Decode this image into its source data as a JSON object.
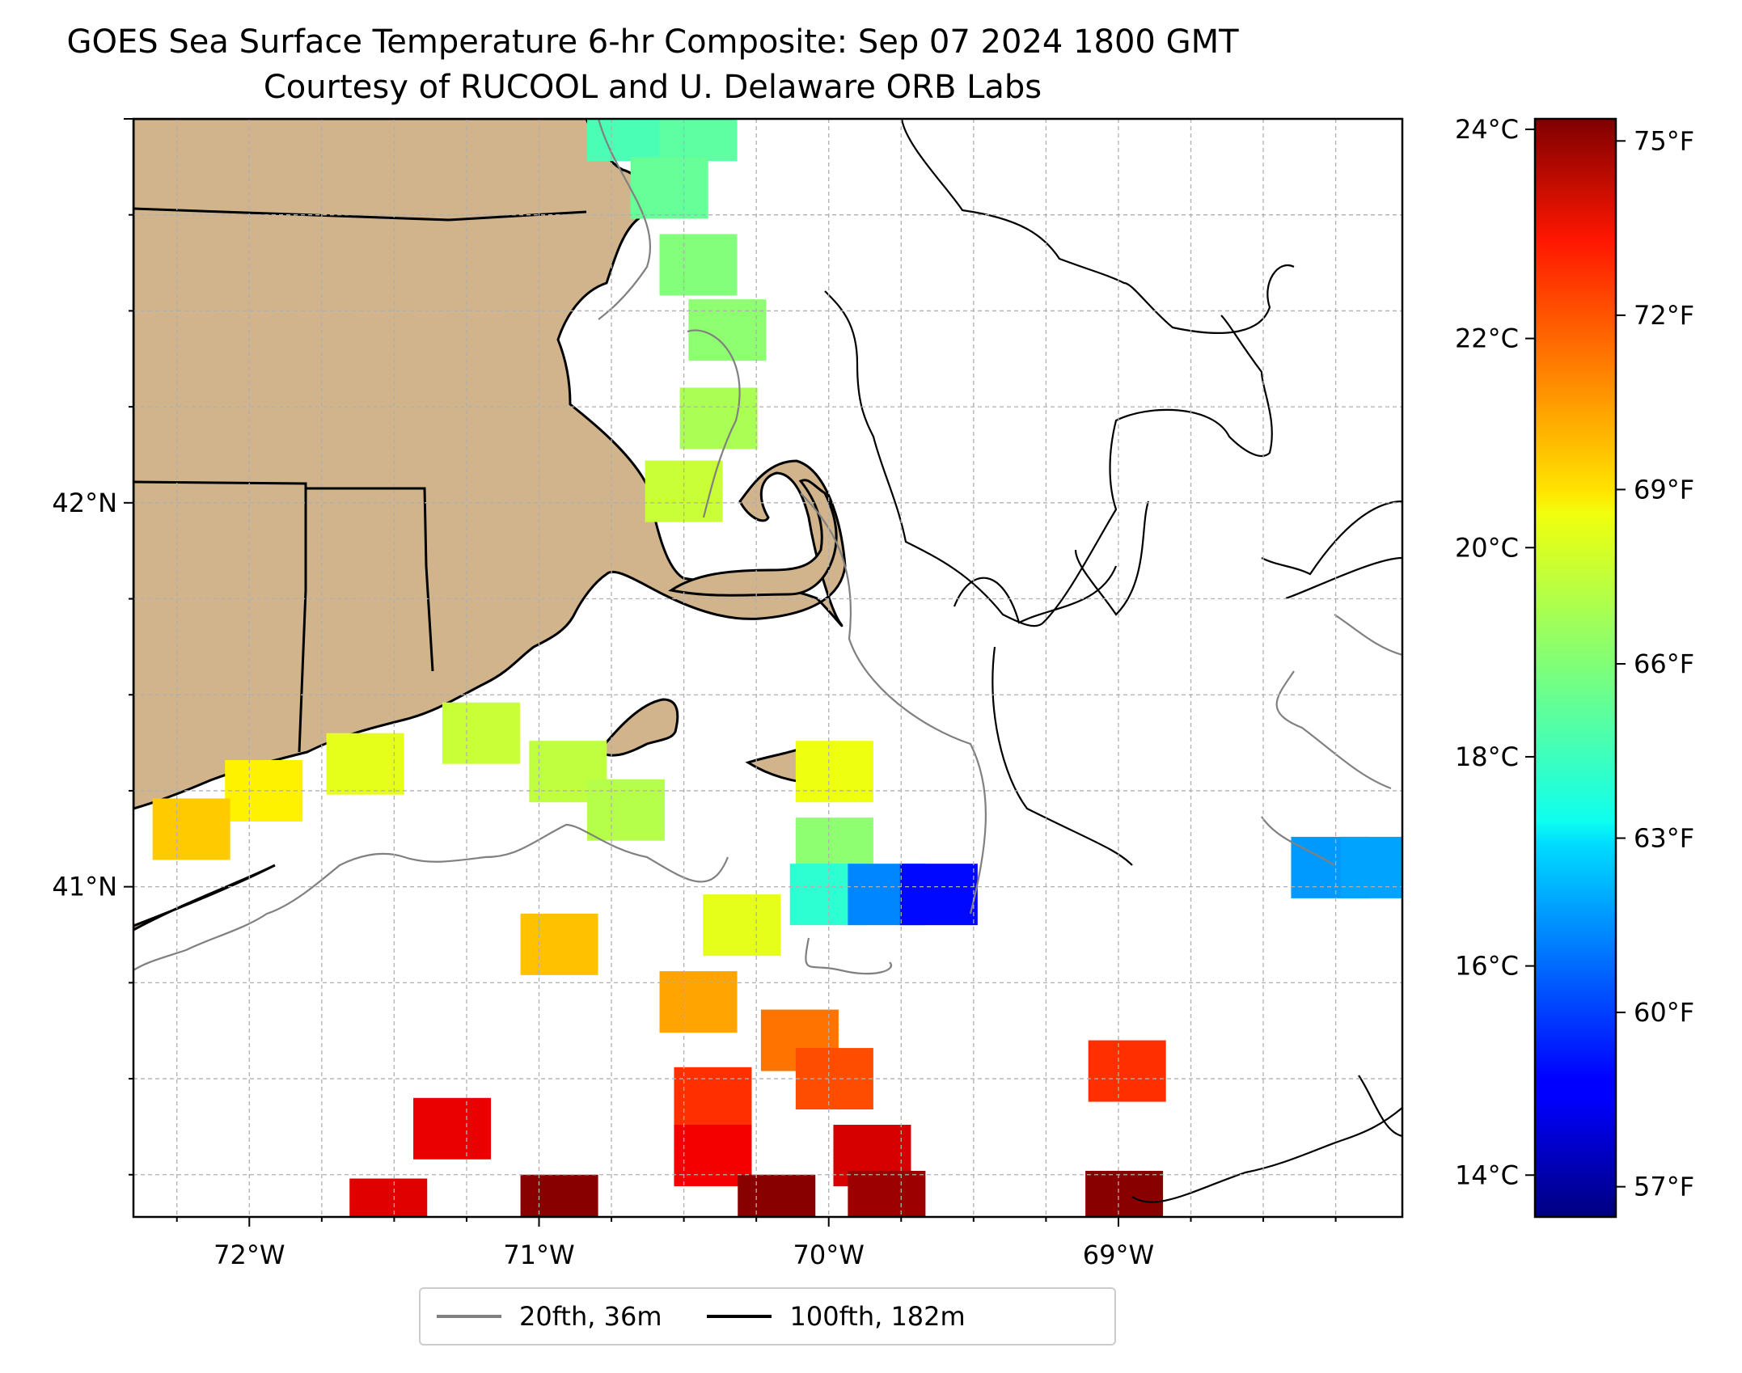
{
  "title": {
    "line1": "GOES Sea Surface Temperature 6-hr Composite: Sep 07 2024 1800 GMT",
    "line2": "Courtesy of RUCOOL and U. Delaware ORB Labs"
  },
  "map": {
    "extent": {
      "lon": [
        -72.4,
        -68.02
      ],
      "lat": [
        40.14,
        43.0
      ]
    },
    "lon_ticks": [
      -72,
      -71,
      -70,
      -69
    ],
    "lon_tick_labels": [
      "72°W",
      "71°W",
      "70°W",
      "69°W"
    ],
    "lat_ticks": [
      41,
      42
    ],
    "lat_tick_labels": [
      "41°N",
      "42°N"
    ],
    "land_color": "#d2b48c",
    "grid": true
  },
  "colorbar": {
    "cmap": "jet",
    "range_c": [
      13.6,
      24.1
    ],
    "celsius_ticks": [
      14,
      16,
      18,
      20,
      22,
      24
    ],
    "celsius_labels": [
      "14°C",
      "16°C",
      "18°C",
      "20°C",
      "22°C",
      "24°C"
    ],
    "fahrenheit_ticks": [
      57,
      60,
      63,
      66,
      69,
      72,
      75
    ],
    "fahrenheit_labels": [
      "57°F",
      "60°F",
      "63°F",
      "66°F",
      "69°F",
      "72°F",
      "75°F"
    ]
  },
  "legend": {
    "entries": [
      {
        "label": "20fth, 36m",
        "color": "#808080"
      },
      {
        "label": "100fth, 182m",
        "color": "#000000"
      }
    ]
  },
  "sst_patches": [
    {
      "lon": -70.7,
      "lat": 42.97,
      "temp_c": 18.3
    },
    {
      "lon": -70.45,
      "lat": 42.97,
      "temp_c": 18.5
    },
    {
      "lon": -70.55,
      "lat": 42.82,
      "temp_c": 18.6
    },
    {
      "lon": -70.45,
      "lat": 42.62,
      "temp_c": 18.9
    },
    {
      "lon": -70.35,
      "lat": 42.45,
      "temp_c": 19.0
    },
    {
      "lon": -70.38,
      "lat": 42.22,
      "temp_c": 19.3
    },
    {
      "lon": -70.5,
      "lat": 42.03,
      "temp_c": 19.6
    },
    {
      "lon": -71.2,
      "lat": 41.4,
      "temp_c": 19.6
    },
    {
      "lon": -71.6,
      "lat": 41.32,
      "temp_c": 19.9
    },
    {
      "lon": -71.95,
      "lat": 41.25,
      "temp_c": 20.3
    },
    {
      "lon": -72.2,
      "lat": 41.15,
      "temp_c": 20.7
    },
    {
      "lon": -70.9,
      "lat": 41.3,
      "temp_c": 19.5
    },
    {
      "lon": -70.7,
      "lat": 41.2,
      "temp_c": 19.4
    },
    {
      "lon": -69.98,
      "lat": 41.3,
      "temp_c": 20.0
    },
    {
      "lon": -69.98,
      "lat": 41.1,
      "temp_c": 19.0
    },
    {
      "lon": -70.0,
      "lat": 40.98,
      "temp_c": 18.0
    },
    {
      "lon": -69.8,
      "lat": 40.98,
      "temp_c": 16.3
    },
    {
      "lon": -69.62,
      "lat": 40.98,
      "temp_c": 15.0
    },
    {
      "lon": -68.27,
      "lat": 41.05,
      "temp_c": 16.5
    },
    {
      "lon": -68.1,
      "lat": 41.05,
      "temp_c": 16.6
    },
    {
      "lon": -70.93,
      "lat": 40.85,
      "temp_c": 20.8
    },
    {
      "lon": -70.3,
      "lat": 40.9,
      "temp_c": 19.9
    },
    {
      "lon": -70.45,
      "lat": 40.7,
      "temp_c": 21.1
    },
    {
      "lon": -70.1,
      "lat": 40.6,
      "temp_c": 21.6
    },
    {
      "lon": -69.98,
      "lat": 40.5,
      "temp_c": 22.0
    },
    {
      "lon": -70.4,
      "lat": 40.45,
      "temp_c": 22.3
    },
    {
      "lon": -70.4,
      "lat": 40.3,
      "temp_c": 22.9
    },
    {
      "lon": -71.3,
      "lat": 40.37,
      "temp_c": 23.0
    },
    {
      "lon": -69.85,
      "lat": 40.3,
      "temp_c": 23.2
    },
    {
      "lon": -69.8,
      "lat": 40.18,
      "temp_c": 23.8
    },
    {
      "lon": -70.93,
      "lat": 40.17,
      "temp_c": 24.0
    },
    {
      "lon": -70.18,
      "lat": 40.17,
      "temp_c": 24.0
    },
    {
      "lon": -68.98,
      "lat": 40.18,
      "temp_c": 24.0
    },
    {
      "lon": -68.97,
      "lat": 40.52,
      "temp_c": 22.3
    },
    {
      "lon": -71.52,
      "lat": 40.16,
      "temp_c": 23.1
    }
  ]
}
